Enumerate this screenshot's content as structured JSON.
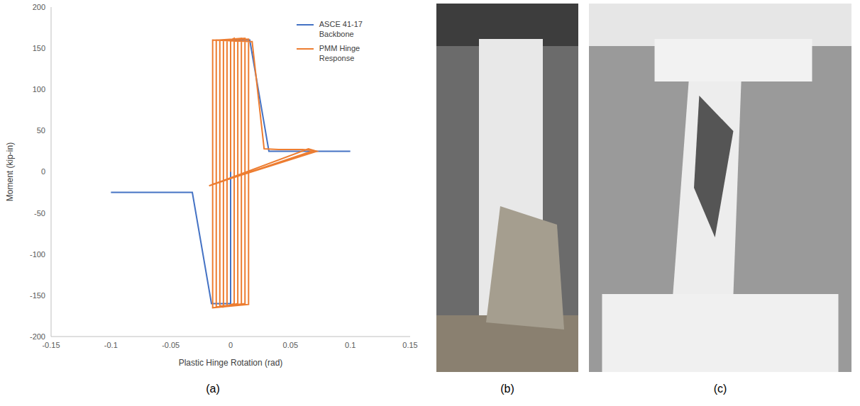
{
  "chart_data": {
    "type": "line",
    "xlabel": "Plastic Hinge Rotation (rad)",
    "ylabel": "Moment (kip-in)",
    "xlim": [
      -0.15,
      0.15
    ],
    "xticks": [
      -0.15,
      -0.1,
      -0.05,
      0,
      0.05,
      0.1,
      0.15
    ],
    "ylim": [
      -200,
      200
    ],
    "yticks": [
      -200,
      -150,
      -100,
      -50,
      0,
      50,
      100,
      150,
      200
    ],
    "grid": false,
    "legend": "upper right",
    "series": [
      {
        "name": "ASCE 41-17 Backbone",
        "color": "#4472c4",
        "x": [
          -0.1,
          -0.032,
          -0.016,
          0,
          0,
          0.016,
          0.032,
          0.1
        ],
        "values": [
          -25,
          -25,
          -160,
          -160,
          160,
          160,
          25,
          25
        ]
      },
      {
        "name": "PMM Hinge Response",
        "color": "#ed7d31",
        "x": [
          0,
          0,
          0.003,
          0.003,
          -0.003,
          -0.003,
          0.006,
          0.006,
          -0.006,
          -0.006,
          0.009,
          0.009,
          -0.009,
          -0.009,
          0.012,
          0.012,
          -0.012,
          -0.012,
          0.015,
          0.015,
          -0.015,
          -0.015,
          0.018,
          0.028,
          0.04,
          0.06,
          0.07,
          -0.018,
          0.065,
          0.072,
          -0.015
        ],
        "values": [
          0,
          160,
          162,
          -160,
          -163,
          160,
          161,
          -160,
          -164,
          160,
          162,
          -161,
          -163,
          160,
          162,
          -160,
          -164,
          160,
          161,
          -161,
          -165,
          160,
          158,
          28,
          27,
          27,
          26,
          -17,
          28,
          25,
          -15
        ]
      }
    ]
  },
  "panel_labels": [
    "(a)",
    "(b)",
    "(c)"
  ]
}
